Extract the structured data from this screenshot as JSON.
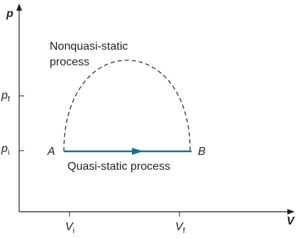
{
  "axes": {
    "y_label": "p",
    "x_label": "V"
  },
  "y_ticks": [
    {
      "symbol": "p",
      "subscript": "f"
    },
    {
      "symbol": "p",
      "subscript": "i"
    }
  ],
  "x_ticks": [
    {
      "symbol": "V",
      "subscript": "i"
    },
    {
      "symbol": "V",
      "subscript": "f"
    }
  ],
  "points": {
    "start": "A",
    "end": "B"
  },
  "paths": {
    "nonquasi_static": [
      "Nonquasi-static",
      "process"
    ],
    "quasi_static": "Quasi-static process"
  }
}
